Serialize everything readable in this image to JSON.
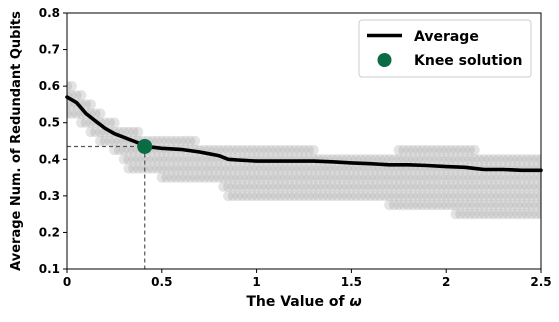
{
  "chart_data": {
    "type": "scatter",
    "xlabel_prefix": "The Value of ",
    "xlabel_symbol": "ω",
    "ylabel": "Average Num. of Redundant Qubits",
    "xlim": [
      0,
      2.5
    ],
    "ylim": [
      0.1,
      0.8
    ],
    "xticks": [
      0,
      0.5,
      1,
      1.5,
      2,
      2.5
    ],
    "xtick_labels": [
      "0",
      "0.5",
      "1",
      "1.5",
      "2",
      "2.5"
    ],
    "yticks": [
      0.1,
      0.2,
      0.3,
      0.4,
      0.5,
      0.6,
      0.7,
      0.8
    ],
    "ytick_labels": [
      "0.1",
      "0.2",
      "0.3",
      "0.4",
      "0.5",
      "0.6",
      "0.7",
      "0.8"
    ],
    "grid": false,
    "legend_position": "top-right",
    "colors": {
      "average_line": "#000000",
      "knee": "#0b6b45",
      "scatter": "#9a9a9a",
      "guide": "#555555"
    },
    "average": {
      "name": "Average",
      "x": [
        0,
        0.05,
        0.1,
        0.15,
        0.2,
        0.25,
        0.3,
        0.35,
        0.4,
        0.45,
        0.5,
        0.6,
        0.7,
        0.75,
        0.8,
        0.85,
        0.9,
        1.0,
        1.1,
        1.2,
        1.3,
        1.4,
        1.5,
        1.6,
        1.7,
        1.8,
        1.9,
        2.0,
        2.1,
        2.15,
        2.2,
        2.3,
        2.4,
        2.5
      ],
      "y": [
        0.57,
        0.555,
        0.525,
        0.505,
        0.485,
        0.47,
        0.46,
        0.45,
        0.44,
        0.433,
        0.43,
        0.427,
        0.42,
        0.415,
        0.41,
        0.4,
        0.398,
        0.395,
        0.395,
        0.395,
        0.395,
        0.393,
        0.39,
        0.388,
        0.385,
        0.385,
        0.383,
        0.38,
        0.378,
        0.375,
        0.372,
        0.372,
        0.37,
        0.37
      ]
    },
    "knee": {
      "name": "Knee solution",
      "x": 0.41,
      "y": 0.435
    },
    "scatter": {
      "x_start": 0,
      "x_end": 2.5,
      "x_step": 0.025,
      "y_levels": [
        0.6,
        0.575,
        0.55,
        0.525,
        0.5,
        0.475,
        0.45,
        0.425,
        0.4,
        0.375,
        0.35,
        0.325,
        0.3,
        0.275,
        0.25
      ],
      "point_opacity": 0.28
    }
  }
}
